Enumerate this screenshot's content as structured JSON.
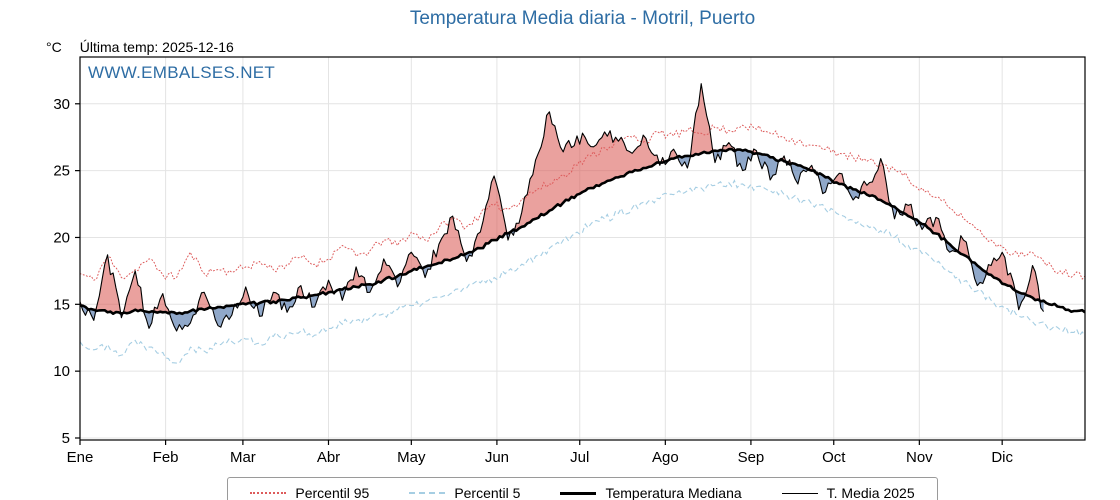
{
  "page": {
    "title": "Temperatura Media diaria - Motril, Puerto",
    "unit_label": "°C",
    "last_temp_label": "Última temp: 2025-12-16",
    "watermark": "WWW.EMBALSES.NET"
  },
  "chart_data": {
    "type": "line",
    "title": "Temperatura Media diaria - Motril, Puerto",
    "xlabel": "",
    "ylabel": "°C",
    "ylim": [
      4.85,
      33.5
    ],
    "yticks": [
      5,
      10,
      15,
      20,
      25,
      30
    ],
    "grid": true,
    "legend_position": "bottom",
    "x_unit": "day_of_year",
    "x_start_day": 1,
    "sample_step_days": 5,
    "months": [
      {
        "label": "Ene",
        "day": 1
      },
      {
        "label": "Feb",
        "day": 32
      },
      {
        "label": "Mar",
        "day": 60
      },
      {
        "label": "Abr",
        "day": 91
      },
      {
        "label": "May",
        "day": 121
      },
      {
        "label": "Jun",
        "day": 152
      },
      {
        "label": "Jul",
        "day": 182
      },
      {
        "label": "Ago",
        "day": 213
      },
      {
        "label": "Sep",
        "day": 244
      },
      {
        "label": "Oct",
        "day": 274
      },
      {
        "label": "Nov",
        "day": 305
      },
      {
        "label": "Dic",
        "day": 335
      }
    ],
    "fills": {
      "above_color": "rgba(217,83,79,0.55)",
      "below_color": "rgba(70,110,165,0.6)"
    },
    "series": [
      {
        "name": "Percentil 95",
        "color": "#dd5b5b",
        "style": "dotted",
        "last_day": 365,
        "values": [
          17.3,
          16.8,
          18.6,
          17.0,
          17.6,
          18.4,
          17.2,
          17.0,
          18.9,
          17.3,
          17.6,
          17.4,
          17.8,
          18.2,
          17.6,
          18.0,
          18.5,
          18.0,
          18.4,
          19.4,
          18.6,
          19.0,
          19.8,
          19.4,
          20.4,
          19.8,
          20.7,
          21.5,
          20.8,
          21.7,
          22.4,
          22.1,
          22.9,
          23.5,
          24.0,
          24.7,
          25.4,
          26.1,
          26.7,
          27.2,
          27.5,
          27.3,
          27.8,
          27.6,
          28.0,
          27.8,
          28.2,
          28.0,
          28.4,
          28.1,
          27.8,
          27.5,
          27.2,
          26.9,
          26.6,
          26.3,
          26.0,
          25.7,
          25.4,
          25.1,
          24.4,
          23.7,
          23.0,
          22.2,
          21.4,
          20.6,
          19.8,
          19.2,
          18.6,
          18.9,
          17.9,
          17.5,
          17.2
        ]
      },
      {
        "name": "Percentil 5",
        "color": "#a6cee3",
        "style": "dashed",
        "last_day": 365,
        "values": [
          12.2,
          11.6,
          12.0,
          11.2,
          12.3,
          11.8,
          11.4,
          10.6,
          11.8,
          11.5,
          12.0,
          12.2,
          12.4,
          12.1,
          12.6,
          12.8,
          13.0,
          12.7,
          13.2,
          13.5,
          13.8,
          14.0,
          14.3,
          14.6,
          14.9,
          15.2,
          15.5,
          15.9,
          16.2,
          16.6,
          17.0,
          17.5,
          18.0,
          18.6,
          19.2,
          19.8,
          20.4,
          21.0,
          21.4,
          21.8,
          22.2,
          22.5,
          22.9,
          23.2,
          23.5,
          23.7,
          23.9,
          24.1,
          24.0,
          23.8,
          23.5,
          23.2,
          22.9,
          22.5,
          22.1,
          21.7,
          21.3,
          20.9,
          20.5,
          20.0,
          19.4,
          18.8,
          18.1,
          17.4,
          16.7,
          16.0,
          15.3,
          14.7,
          14.1,
          13.7,
          13.4,
          13.1,
          12.9
        ]
      },
      {
        "name": "Temperatura Mediana",
        "color": "#000000",
        "style": "solid-thick",
        "last_day": 365,
        "values": [
          14.9,
          14.6,
          14.4,
          14.3,
          14.6,
          14.4,
          14.4,
          14.3,
          14.5,
          14.6,
          14.8,
          14.9,
          15.0,
          15.1,
          15.2,
          15.3,
          15.5,
          15.7,
          15.9,
          16.1,
          16.3,
          16.5,
          16.8,
          17.1,
          17.5,
          17.8,
          18.1,
          18.4,
          18.8,
          19.2,
          19.8,
          20.3,
          20.8,
          21.4,
          22.0,
          22.6,
          23.2,
          23.7,
          24.1,
          24.5,
          24.9,
          25.2,
          25.6,
          25.9,
          26.1,
          26.3,
          26.5,
          26.6,
          26.5,
          26.3,
          26.0,
          25.7,
          25.4,
          25.0,
          24.5,
          24.0,
          23.6,
          23.2,
          22.8,
          22.3,
          21.6,
          21.0,
          20.3,
          19.5,
          18.7,
          17.9,
          17.2,
          16.5,
          15.9,
          15.5,
          15.1,
          14.8,
          14.5
        ]
      },
      {
        "name": "T. Media 2025",
        "color": "#000000",
        "style": "solid-thin",
        "last_day": 350,
        "values": [
          15.2,
          13.8,
          18.7,
          14.0,
          17.5,
          13.2,
          15.8,
          13.0,
          13.6,
          15.9,
          13.4,
          14.2,
          16.3,
          14.1,
          15.9,
          14.4,
          16.4,
          14.8,
          16.8,
          15.3,
          17.8,
          15.9,
          18.4,
          16.3,
          18.9,
          17.0,
          19.5,
          21.6,
          18.2,
          20.4,
          24.6,
          19.8,
          21.9,
          25.8,
          29.4,
          26.4,
          27.6,
          26.8,
          27.9,
          27.2,
          26.3,
          27.4,
          25.4,
          26.6,
          25.2,
          31.5,
          25.6,
          27.1,
          25.0,
          26.5,
          24.3,
          26.1,
          24.0,
          25.4,
          23.4,
          24.8,
          22.8,
          23.9,
          25.9,
          21.4,
          22.4,
          20.6,
          21.5,
          18.9,
          19.8,
          16.4,
          17.9,
          18.5,
          14.6,
          17.9,
          13.2
        ]
      }
    ]
  }
}
